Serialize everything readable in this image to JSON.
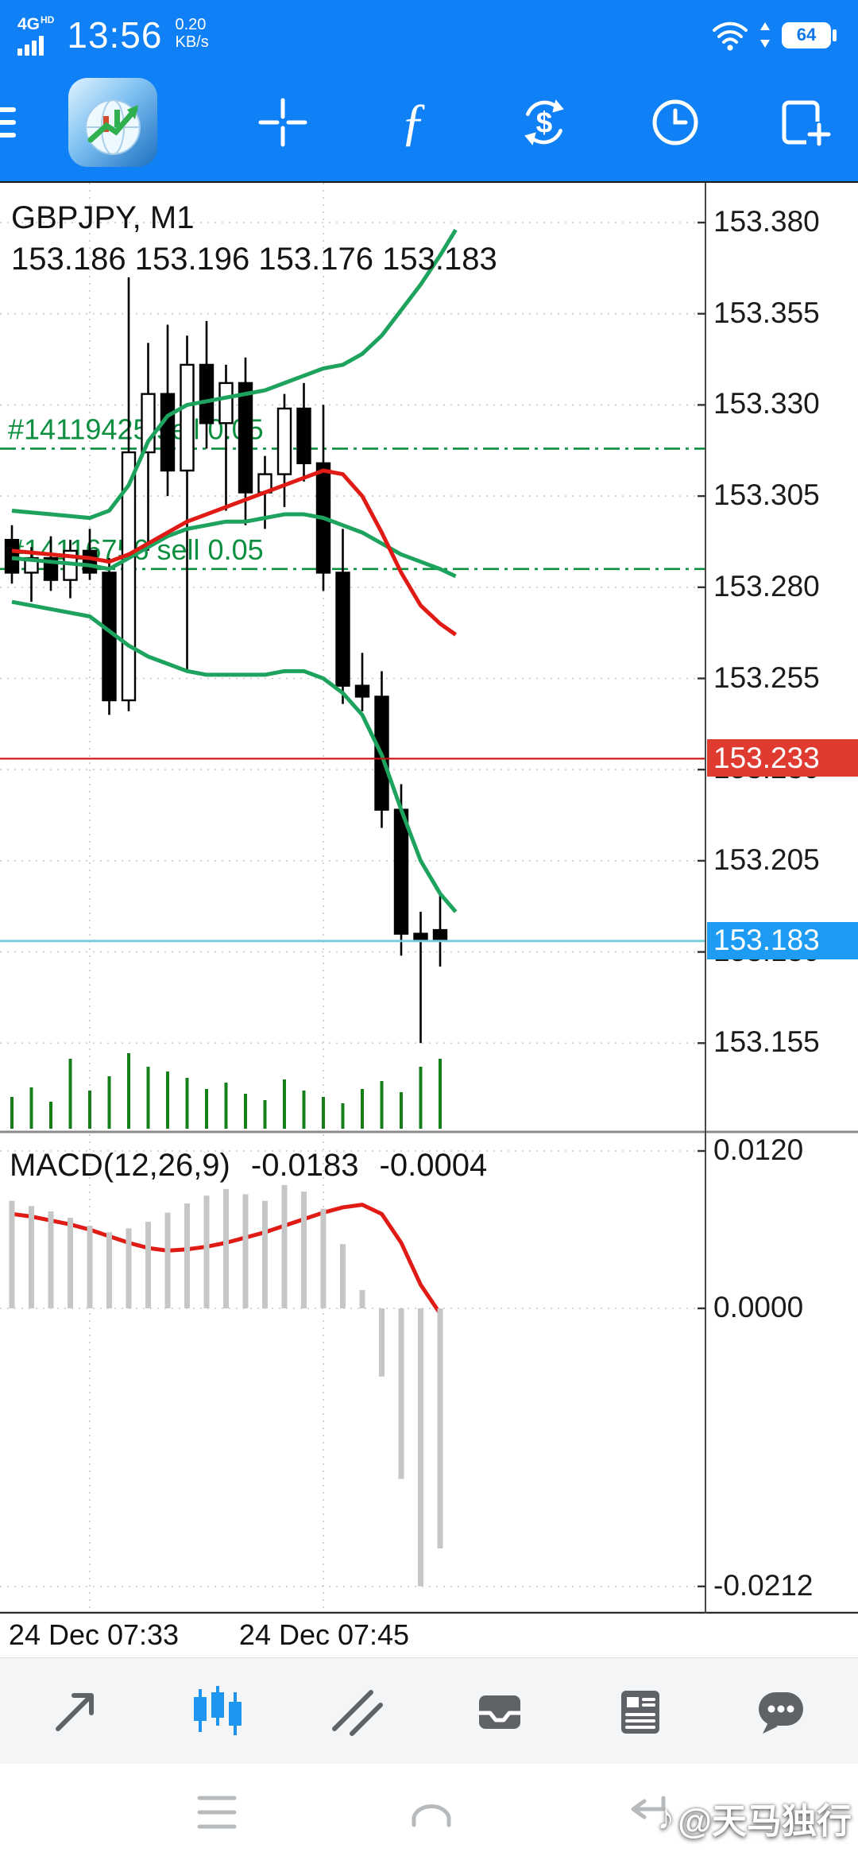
{
  "colors": {
    "toolbar_blue": "#0f80f5",
    "active_tab_blue": "#1e96f0",
    "band_green": "#1ea35f",
    "signal_red": "#e01b16",
    "position_green": "#0c9040",
    "current_price_badge_blue": "#1e9bf2",
    "stop_price_badge_red": "#e03b30",
    "histogram_gray": "#c6c6c6",
    "volume_green": "#15801a"
  },
  "status_bar": {
    "network_badge": "4G",
    "network_sub": "HD",
    "time": "13:56",
    "speed_value": "0.20",
    "speed_unit": "KB/s",
    "battery_level": "64"
  },
  "toolbar": {
    "icons": [
      "menu",
      "app-logo",
      "crosshair",
      "indicators",
      "trade",
      "history",
      "new-order"
    ]
  },
  "chart": {
    "symbol_title": "GBPJPY, M1",
    "ohlc": "153.186 153.196 153.176 153.183",
    "positions": [
      {
        "label": "#14119425 sell 0.05",
        "price": 153.318
      },
      {
        "label": "#14116756 sell 0.05",
        "price": 153.285
      }
    ],
    "red_line_price": "153.233",
    "current_price": "153.183",
    "price_ticks": [
      "153.380",
      "153.355",
      "153.330",
      "153.305",
      "153.280",
      "153.255",
      "153.230",
      "153.205",
      "153.180",
      "153.155"
    ],
    "macd_label": "MACD(12,26,9)",
    "macd_value_main": "-0.0183",
    "macd_value_signal": "-0.0004",
    "macd_ticks": [
      "0.0120",
      "0.0000",
      "-0.0212"
    ],
    "time_labels": [
      "24 Dec 07:33",
      "24 Dec 07:45"
    ]
  },
  "chart_data": {
    "type": "candlestick",
    "symbol": "GBPJPY",
    "timeframe": "M1",
    "price_ticks_values": [
      153.38,
      153.355,
      153.33,
      153.305,
      153.28,
      153.255,
      153.23,
      153.205,
      153.18,
      153.155
    ],
    "macd_ticks_values": [
      0.012,
      0.0,
      -0.0212
    ],
    "grid_time_idx": [
      4,
      16
    ],
    "levels": {
      "red": 153.233,
      "current": 153.183
    },
    "candles": [
      {
        "o": 153.293,
        "h": 153.297,
        "l": 153.281,
        "c": 153.284
      },
      {
        "o": 153.284,
        "h": 153.291,
        "l": 153.276,
        "c": 153.288
      },
      {
        "o": 153.288,
        "h": 153.294,
        "l": 153.279,
        "c": 153.282
      },
      {
        "o": 153.282,
        "h": 153.293,
        "l": 153.277,
        "c": 153.29
      },
      {
        "o": 153.29,
        "h": 153.296,
        "l": 153.282,
        "c": 153.284
      },
      {
        "o": 153.284,
        "h": 153.288,
        "l": 153.245,
        "c": 153.249
      },
      {
        "o": 153.249,
        "h": 153.365,
        "l": 153.246,
        "c": 153.317
      },
      {
        "o": 153.317,
        "h": 153.347,
        "l": 153.29,
        "c": 153.333
      },
      {
        "o": 153.333,
        "h": 153.352,
        "l": 153.305,
        "c": 153.312
      },
      {
        "o": 153.312,
        "h": 153.349,
        "l": 153.257,
        "c": 153.341
      },
      {
        "o": 153.341,
        "h": 153.353,
        "l": 153.318,
        "c": 153.325
      },
      {
        "o": 153.325,
        "h": 153.341,
        "l": 153.301,
        "c": 153.336
      },
      {
        "o": 153.336,
        "h": 153.343,
        "l": 153.297,
        "c": 153.306
      },
      {
        "o": 153.306,
        "h": 153.316,
        "l": 153.296,
        "c": 153.311
      },
      {
        "o": 153.311,
        "h": 153.333,
        "l": 153.302,
        "c": 153.329
      },
      {
        "o": 153.329,
        "h": 153.336,
        "l": 153.309,
        "c": 153.314
      },
      {
        "o": 153.314,
        "h": 153.33,
        "l": 153.279,
        "c": 153.284
      },
      {
        "o": 153.284,
        "h": 153.296,
        "l": 153.248,
        "c": 153.253
      },
      {
        "o": 153.253,
        "h": 153.262,
        "l": 153.246,
        "c": 153.25
      },
      {
        "o": 153.25,
        "h": 153.257,
        "l": 153.214,
        "c": 153.219
      },
      {
        "o": 153.219,
        "h": 153.226,
        "l": 153.179,
        "c": 153.185
      },
      {
        "o": 153.185,
        "h": 153.191,
        "l": 153.155,
        "c": 153.183
      },
      {
        "o": 153.186,
        "h": 153.196,
        "l": 153.176,
        "c": 153.183
      }
    ],
    "volume": [
      0.4,
      0.52,
      0.34,
      0.88,
      0.48,
      0.66,
      0.95,
      0.78,
      0.72,
      0.64,
      0.5,
      0.58,
      0.44,
      0.36,
      0.62,
      0.48,
      0.4,
      0.32,
      0.5,
      0.6,
      0.46,
      0.78,
      0.88
    ],
    "bands": {
      "upper": [
        [
          0,
          153.301
        ],
        [
          2,
          153.3
        ],
        [
          4,
          153.299
        ],
        [
          5,
          153.301
        ],
        [
          6,
          153.308
        ],
        [
          7,
          153.32
        ],
        [
          8,
          153.327
        ],
        [
          9,
          153.33
        ],
        [
          10,
          153.331
        ],
        [
          11,
          153.332
        ],
        [
          12,
          153.333
        ],
        [
          13,
          153.334
        ],
        [
          14,
          153.336
        ],
        [
          15,
          153.338
        ],
        [
          16,
          153.34
        ],
        [
          17,
          153.341
        ],
        [
          18,
          153.344
        ],
        [
          19,
          153.349
        ],
        [
          20,
          153.356
        ],
        [
          21,
          153.363
        ],
        [
          22,
          153.371
        ],
        [
          22.8,
          153.378
        ]
      ],
      "middle": [
        [
          0,
          153.288
        ],
        [
          2,
          153.287
        ],
        [
          4,
          153.286
        ],
        [
          5,
          153.285
        ],
        [
          6,
          153.288
        ],
        [
          7,
          153.291
        ],
        [
          8,
          153.294
        ],
        [
          9,
          153.296
        ],
        [
          10,
          153.297
        ],
        [
          11,
          153.298
        ],
        [
          12,
          153.298
        ],
        [
          13,
          153.299
        ],
        [
          14,
          153.3
        ],
        [
          15,
          153.3
        ],
        [
          16,
          153.299
        ],
        [
          17,
          153.297
        ],
        [
          18,
          153.295
        ],
        [
          19,
          153.292
        ],
        [
          20,
          153.289
        ],
        [
          21,
          153.287
        ],
        [
          22,
          153.285
        ],
        [
          22.8,
          153.283
        ]
      ],
      "lower": [
        [
          0,
          153.276
        ],
        [
          2,
          153.274
        ],
        [
          4,
          153.272
        ],
        [
          5,
          153.268
        ],
        [
          6,
          153.264
        ],
        [
          7,
          153.261
        ],
        [
          8,
          153.259
        ],
        [
          9,
          153.257
        ],
        [
          10,
          153.256
        ],
        [
          11,
          153.256
        ],
        [
          12,
          153.256
        ],
        [
          13,
          153.256
        ],
        [
          14,
          153.257
        ],
        [
          15,
          153.257
        ],
        [
          16,
          153.255
        ],
        [
          17,
          153.251
        ],
        [
          18,
          153.245
        ],
        [
          19,
          153.234
        ],
        [
          20,
          153.219
        ],
        [
          21,
          153.205
        ],
        [
          22,
          153.196
        ],
        [
          22.8,
          153.191
        ]
      ],
      "red_ma": [
        [
          0,
          153.29
        ],
        [
          2,
          153.289
        ],
        [
          4,
          153.288
        ],
        [
          5,
          153.287
        ],
        [
          6,
          153.289
        ],
        [
          7,
          153.292
        ],
        [
          8,
          153.295
        ],
        [
          9,
          153.298
        ],
        [
          10,
          153.3
        ],
        [
          11,
          153.302
        ],
        [
          12,
          153.304
        ],
        [
          13,
          153.306
        ],
        [
          14,
          153.308
        ],
        [
          15,
          153.31
        ],
        [
          16,
          153.312
        ],
        [
          17,
          153.311
        ],
        [
          18,
          153.305
        ],
        [
          19,
          153.295
        ],
        [
          20,
          153.284
        ],
        [
          21,
          153.275
        ],
        [
          22,
          153.27
        ],
        [
          22.8,
          153.267
        ]
      ],
      "style": "bollinger-green, ma-red"
    },
    "macd": {
      "histogram": [
        0.0082,
        0.0078,
        0.0074,
        0.0069,
        0.0063,
        0.0058,
        0.0061,
        0.0066,
        0.0073,
        0.008,
        0.0086,
        0.0091,
        0.0087,
        0.0082,
        0.0094,
        0.0089,
        0.0076,
        0.0049,
        0.0014,
        -0.0052,
        -0.013,
        -0.0212,
        -0.0183
      ],
      "signal": [
        [
          0,
          0.0072
        ],
        [
          1,
          0.007
        ],
        [
          2,
          0.0067
        ],
        [
          3,
          0.0064
        ],
        [
          4,
          0.006
        ],
        [
          5,
          0.0055
        ],
        [
          6,
          0.005
        ],
        [
          7,
          0.0046
        ],
        [
          8,
          0.0044
        ],
        [
          9,
          0.0045
        ],
        [
          10,
          0.0047
        ],
        [
          11,
          0.005
        ],
        [
          12,
          0.0054
        ],
        [
          13,
          0.0058
        ],
        [
          14,
          0.0063
        ],
        [
          15,
          0.0068
        ],
        [
          16,
          0.0073
        ],
        [
          17,
          0.0077
        ],
        [
          18,
          0.0079
        ],
        [
          19,
          0.0072
        ],
        [
          20,
          0.005
        ],
        [
          21,
          0.0018
        ],
        [
          22,
          -0.0004
        ]
      ],
      "range": [
        -0.0212,
        0.012
      ]
    }
  },
  "bottom_toolbar": {
    "tabs": [
      "quotes",
      "charts",
      "trade",
      "history",
      "news",
      "messages"
    ],
    "active": "charts"
  },
  "nav_bar": {
    "buttons": [
      "menu",
      "home",
      "back"
    ]
  },
  "watermark": {
    "icon": "♪",
    "text": "@天马独行"
  }
}
